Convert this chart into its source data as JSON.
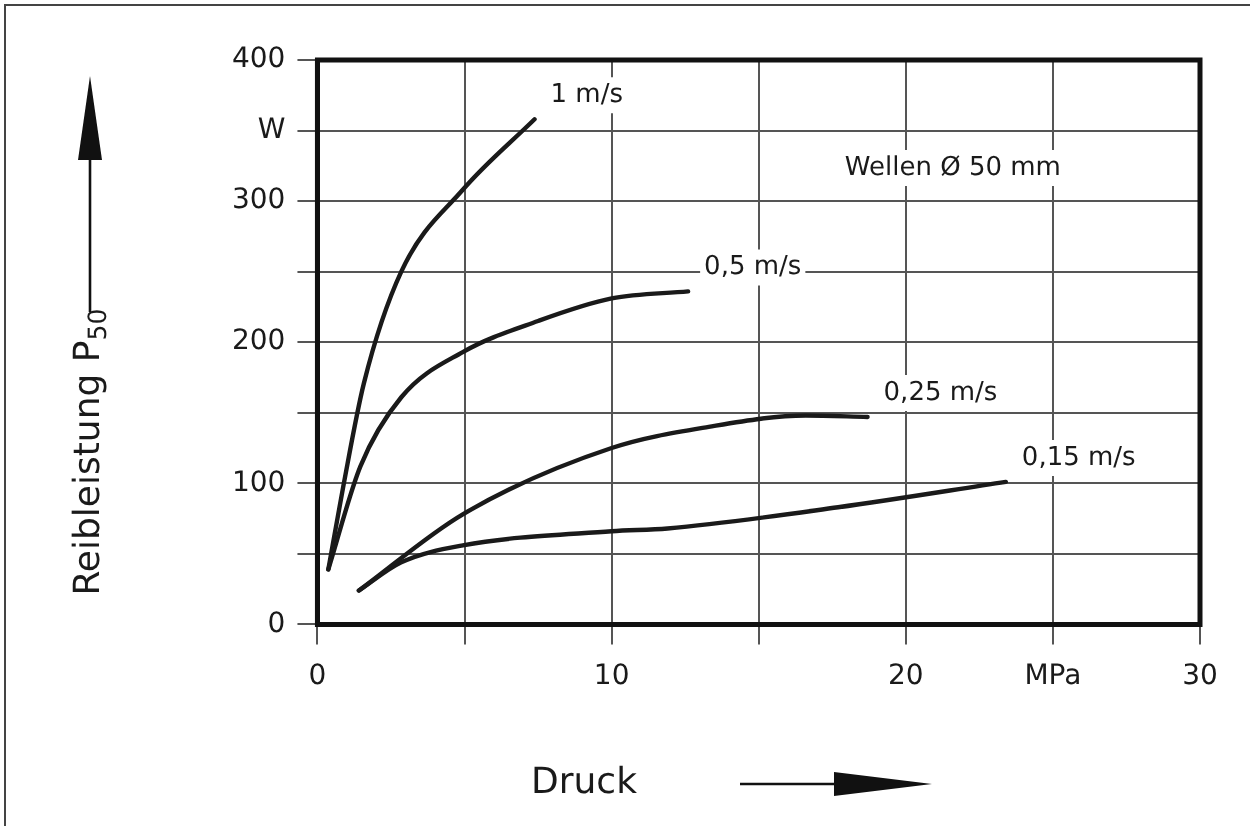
{
  "chart_data": {
    "type": "line",
    "xlabel": "Druck",
    "ylabel": "Reibleistung P$_{50}$",
    "annotations": [
      "Wellen Ø 50 mm"
    ],
    "xlim": [
      0,
      30
    ],
    "ylim": [
      0,
      400
    ],
    "xticks": [
      0,
      {
        "value": 5,
        "label": null
      },
      10,
      {
        "value": 15,
        "label": null
      },
      20,
      {
        "value": 25,
        "label": "MPa"
      },
      30
    ],
    "yticks": [
      0,
      {
        "value": 50,
        "label": null
      },
      100,
      {
        "value": 150,
        "label": null
      },
      200,
      {
        "value": 250,
        "label": null
      },
      300,
      {
        "value": 350,
        "label": "W"
      },
      400
    ],
    "grid": true,
    "legend": false,
    "marker": "none",
    "line_style": "solid",
    "series": [
      {
        "name": "1 m/s",
        "color": "#1a1a1a",
        "x": [
          0.37,
          0.88,
          1.58,
          2.85,
          4.94,
          7.38
        ],
        "values": [
          39,
          98,
          171,
          250,
          308,
          358
        ]
      },
      {
        "name": "0,5 m/s",
        "color": "#1a1a1a",
        "x": [
          0.37,
          1.46,
          2.85,
          4.94,
          7.5,
          10,
          12.6
        ],
        "values": [
          39,
          112,
          161,
          193,
          215,
          231,
          236
        ]
      },
      {
        "name": "0,25 m/s",
        "color": "#1a1a1a",
        "x": [
          1.41,
          4.94,
          10,
          13.3,
          16.6,
          18.7
        ],
        "values": [
          24,
          78,
          125,
          140,
          148,
          147
        ]
      },
      {
        "name": "0,15 m/s",
        "color": "#1a1a1a",
        "x": [
          1.41,
          2.85,
          4.94,
          10,
          11.9,
          17.7,
          23.4
        ],
        "values": [
          24,
          44,
          56,
          66,
          68,
          83,
          101
        ]
      }
    ]
  }
}
